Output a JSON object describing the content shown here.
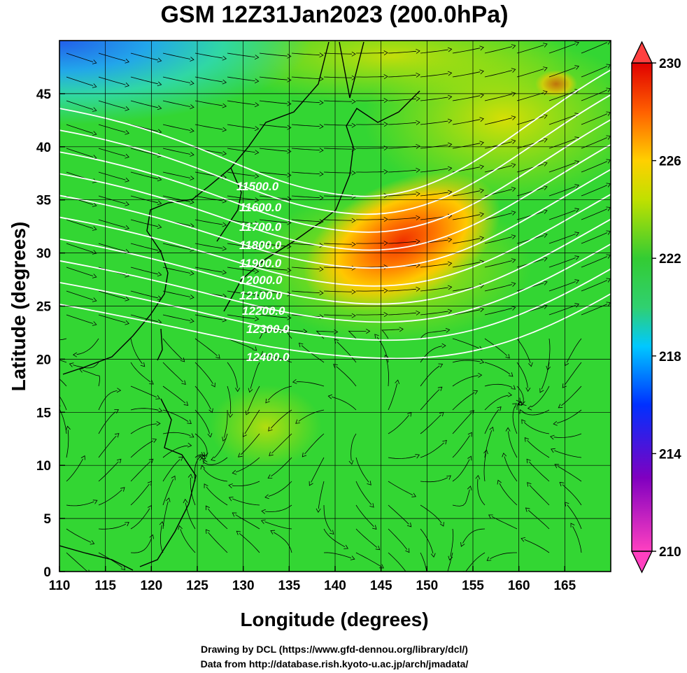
{
  "title": "GSM 12Z31Jan2023 (200.0hPa)",
  "x_axis": {
    "label": "Longitude (degrees)",
    "ticks": [
      "110",
      "115",
      "120",
      "125",
      "130",
      "135",
      "140",
      "145",
      "150",
      "155",
      "160",
      "165"
    ]
  },
  "y_axis": {
    "label": "Latitude  (degrees)",
    "ticks": [
      "0",
      "5",
      "10",
      "15",
      "20",
      "25",
      "30",
      "35",
      "40",
      "45"
    ]
  },
  "colorbar": {
    "ticks": [
      "210",
      "214",
      "218",
      "222",
      "226",
      "230"
    ],
    "colors": [
      "#ff40c0",
      "#8000c0",
      "#0030ff",
      "#00c8ff",
      "#30d060",
      "#33cc33",
      "#c0e000",
      "#ffd000",
      "#ff6000",
      "#e00000"
    ]
  },
  "contour_labels": [
    "11500.0",
    "11600.0",
    "11700.0",
    "11800.0",
    "11900.0",
    "12000.0",
    "12100.0",
    "12200.0",
    "12300.0",
    "12400.0"
  ],
  "credits": {
    "line1": "Drawing by DCL (https://www.gfd-dennou.org/library/dcl/)",
    "line2": "Data from http://database.rish.kyoto-u.ac.jp/arch/jmadata/"
  },
  "chart_data": {
    "type": "heatmap",
    "title": "GSM 12Z31Jan2023 (200.0hPa)",
    "xlabel": "Longitude (degrees)",
    "ylabel": "Latitude  (degrees)",
    "xlim": [
      110,
      170
    ],
    "ylim": [
      0,
      50
    ],
    "color_range": [
      210,
      230
    ],
    "contour_levels": [
      11500,
      11600,
      11700,
      11800,
      11900,
      12000,
      12100,
      12200,
      12300,
      12400
    ],
    "grid": true
  }
}
